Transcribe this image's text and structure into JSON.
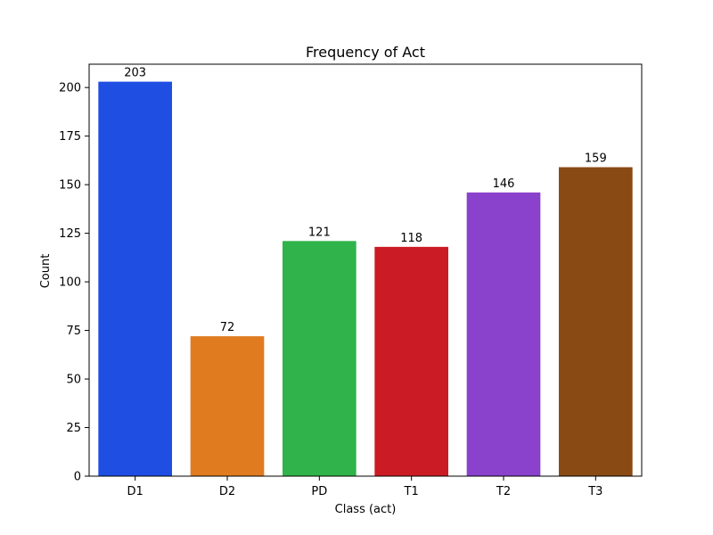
{
  "chart_data": {
    "type": "bar",
    "title": "Frequency of Act",
    "xlabel": "Class (act)",
    "ylabel": "Count",
    "categories": [
      "D1",
      "D2",
      "PD",
      "T1",
      "T2",
      "T3"
    ],
    "values": [
      203,
      72,
      121,
      118,
      146,
      159
    ],
    "colors": [
      "#1f4ee3",
      "#e07b20",
      "#2fb34a",
      "#cb1b25",
      "#8a41cc",
      "#8a4a13"
    ],
    "ylim": [
      0,
      212
    ],
    "yticks": [
      0,
      25,
      50,
      75,
      100,
      125,
      150,
      175,
      200
    ],
    "grid": false,
    "data_labels": true
  }
}
